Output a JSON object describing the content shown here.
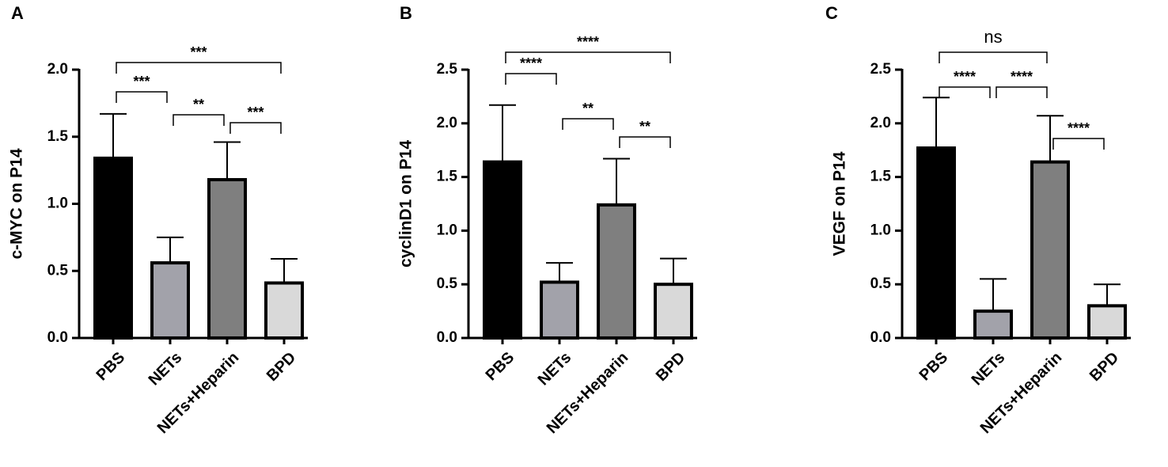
{
  "chart_data": [
    {
      "type": "bar",
      "panel": "A",
      "ylabel": "c-MYC on P14",
      "categories": [
        "PBS",
        "NETs",
        "NETs+Heparin",
        "BPD"
      ],
      "values": [
        1.34,
        0.56,
        1.18,
        0.41
      ],
      "errors": [
        0.33,
        0.19,
        0.28,
        0.18
      ],
      "colors": [
        "#000000",
        "#a2a2aa",
        "#7f7f7f",
        "#d9d9d9"
      ],
      "ylim": [
        0,
        2
      ],
      "yticks": [
        {
          "value": 0,
          "label": "0.0"
        },
        0.5,
        {
          "value": 1,
          "label": "1.0"
        },
        1.5,
        {
          "value": 2,
          "label": "2.0"
        }
      ],
      "comparisons": [
        {
          "groups": [
            "PBS",
            "NETs"
          ],
          "label": "***"
        },
        {
          "groups": [
            "NETs",
            "NETs+Heparin"
          ],
          "label": "**"
        },
        {
          "groups": [
            "NETs+Heparin",
            "BPD"
          ],
          "label": "***"
        },
        {
          "groups": [
            "PBS",
            "BPD"
          ],
          "label": "***"
        }
      ]
    },
    {
      "type": "bar",
      "panel": "B",
      "ylabel": "cyclinD1 on P14",
      "categories": [
        "PBS",
        "NETs",
        "NETs+Heparin",
        "BPD"
      ],
      "values": [
        1.64,
        0.52,
        1.24,
        0.5
      ],
      "errors": [
        0.53,
        0.18,
        0.43,
        0.24
      ],
      "colors": [
        "#000000",
        "#a2a2aa",
        "#7f7f7f",
        "#d9d9d9"
      ],
      "ylim": [
        0,
        2.5
      ],
      "yticks": [
        {
          "value": 0,
          "label": "0.0"
        },
        0.5,
        {
          "value": 1,
          "label": "1.0"
        },
        1.5,
        {
          "value": 2,
          "label": "2.0"
        },
        2.5
      ],
      "comparisons": [
        {
          "groups": [
            "PBS",
            "NETs"
          ],
          "label": "****"
        },
        {
          "groups": [
            "NETs",
            "NETs+Heparin"
          ],
          "label": "**"
        },
        {
          "groups": [
            "NETs+Heparin",
            "BPD"
          ],
          "label": "**"
        },
        {
          "groups": [
            "PBS",
            "BPD"
          ],
          "label": "****"
        }
      ]
    },
    {
      "type": "bar",
      "panel": "C",
      "ylabel": "VEGF on P14",
      "categories": [
        "PBS",
        "NETs",
        "NETs+Heparin",
        "BPD"
      ],
      "values": [
        1.77,
        0.25,
        1.64,
        0.3
      ],
      "errors": [
        0.47,
        0.3,
        0.43,
        0.2
      ],
      "colors": [
        "#000000",
        "#a2a2aa",
        "#7f7f7f",
        "#d9d9d9"
      ],
      "ylim": [
        0,
        2.5
      ],
      "yticks": [
        {
          "value": 0,
          "label": "0.0"
        },
        0.5,
        {
          "value": 1,
          "label": "1.0"
        },
        1.5,
        {
          "value": 2,
          "label": "2.0"
        },
        2.5
      ],
      "comparisons": [
        {
          "groups": [
            "PBS",
            "NETs"
          ],
          "label": "****"
        },
        {
          "groups": [
            "NETs",
            "NETs+Heparin"
          ],
          "label": "****"
        },
        {
          "groups": [
            "NETs+Heparin",
            "BPD"
          ],
          "label": "****"
        },
        {
          "groups": [
            "PBS",
            "NETs+Heparin"
          ],
          "label": "ns"
        }
      ]
    }
  ]
}
